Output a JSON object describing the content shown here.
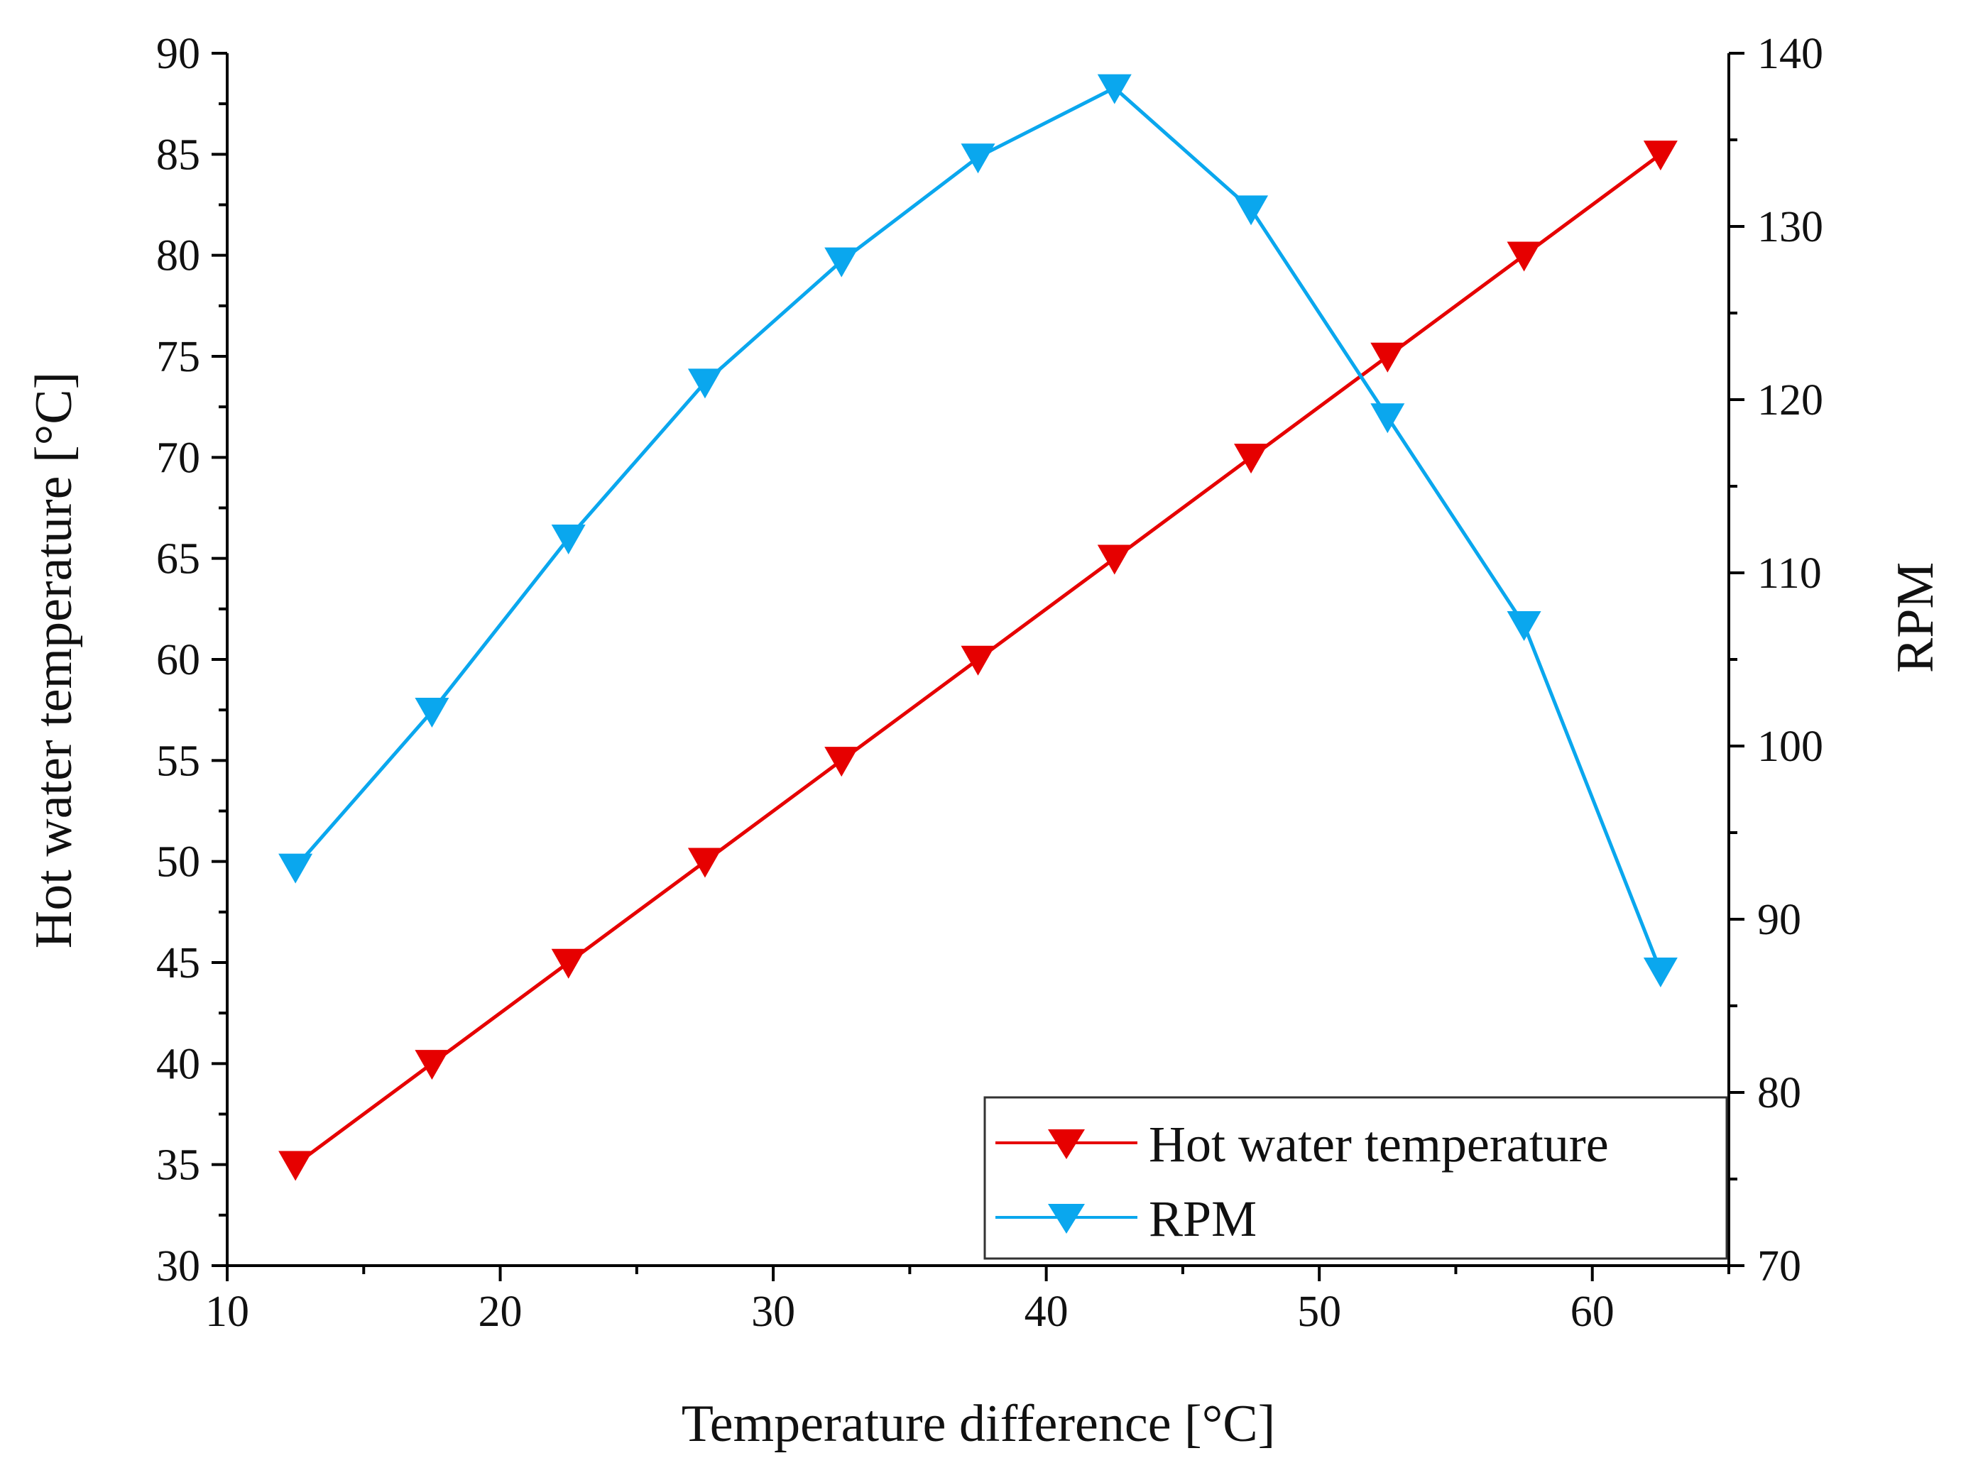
{
  "chart_data": {
    "type": "line",
    "title": "",
    "xlabel": "Temperature difference [°C]",
    "ylabel": "Hot water temperature [°C]",
    "y2label": "RPM",
    "xlim": [
      10,
      65
    ],
    "ylim": [
      30,
      90
    ],
    "y2lim": [
      70,
      140
    ],
    "xticks": [
      10,
      20,
      30,
      40,
      50,
      60
    ],
    "yticks": [
      30,
      35,
      40,
      45,
      50,
      55,
      60,
      65,
      70,
      75,
      80,
      85,
      90
    ],
    "y2ticks": [
      70,
      80,
      90,
      100,
      110,
      120,
      130,
      140
    ],
    "grid": false,
    "legend_position": "bottom-right",
    "x": [
      12.5,
      17.5,
      22.5,
      27.5,
      32.5,
      37.5,
      42.5,
      47.5,
      52.5,
      57.5,
      62.5
    ],
    "series": [
      {
        "name": "Hot water temperature",
        "axis": "left",
        "color": "#e60000",
        "marker": "triangle-down",
        "values": [
          35,
          40,
          45,
          50,
          55,
          60,
          65,
          70,
          75,
          80,
          85
        ]
      },
      {
        "name": "RPM",
        "axis": "right",
        "color": "#0aa7ee",
        "marker": "triangle-down",
        "values": [
          93,
          102,
          112,
          121,
          128,
          134,
          138,
          131,
          119,
          107,
          87
        ]
      }
    ]
  }
}
